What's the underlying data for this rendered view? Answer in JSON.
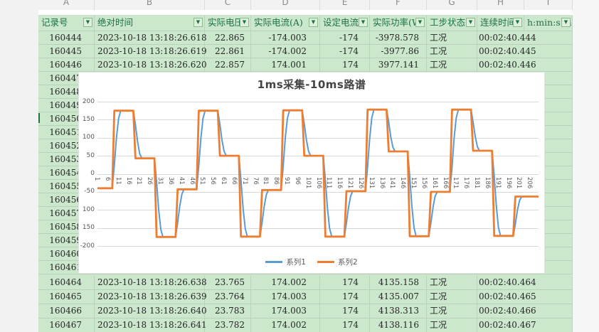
{
  "sheet": {
    "column_letters": [
      "A",
      "B",
      "C",
      "D",
      "E",
      "F",
      "G",
      "H",
      "I"
    ],
    "headers": [
      {
        "label": "记录号",
        "filter": true
      },
      {
        "label": "绝对时间",
        "filter": true
      },
      {
        "label": "实际电压",
        "filter": true
      },
      {
        "label": "实际电流(A)",
        "filter": true
      },
      {
        "label": "设定电流(",
        "filter": true
      },
      {
        "label": "实际功率(W",
        "filter": true
      },
      {
        "label": "工步状态",
        "filter": true
      },
      {
        "label": "连续时间",
        "filter": true
      },
      {
        "label": "h:min:s.m",
        "filter": true
      }
    ],
    "rows_top": [
      [
        "160444",
        "2023-10-18 13:18:26.618",
        "22.865",
        "-174.003",
        "-174",
        "-3978.578",
        "工况",
        "00:02:40.444"
      ],
      [
        "160445",
        "2023-10-18 13:18:26.619",
        "22.861",
        "-174.002",
        "-174",
        "-3977.86",
        "工况",
        "00:02:40.445"
      ],
      [
        "160446",
        "2023-10-18 13:18:26.620",
        "22.857",
        "174.001",
        "174",
        "3977.141",
        "工况",
        "00:02:40.446"
      ]
    ],
    "rows_partially_hidden_behind_chart": [
      "160447",
      "160448",
      "160449",
      "160450",
      "160451",
      "160452",
      "160453",
      "160454",
      "160455",
      "160456",
      "160457",
      "160458",
      "160459",
      "160460",
      "160461"
    ],
    "rows_bottom": [
      [
        "160464",
        "2023-10-18 13:18:26.638",
        "23.765",
        "174.002",
        "174",
        "4135.158",
        "工况",
        "00:02:40.464"
      ],
      [
        "160465",
        "2023-10-18 13:18:26.639",
        "23.764",
        "174.003",
        "174",
        "4135.007",
        "工况",
        "00:02:40.465"
      ],
      [
        "160466",
        "2023-10-18 13:18:26.640",
        "23.783",
        "174.003",
        "174",
        "4138.313",
        "工况",
        "00:02:40.466"
      ],
      [
        "160467",
        "2023-10-18 13:18:26.641",
        "23.782",
        "174.002",
        "174",
        "4138.116",
        "工况",
        "00:02:40.467"
      ]
    ]
  },
  "chart_data": {
    "type": "line",
    "title": "1ms采集-10ms路谱",
    "x_range": [
      1,
      210
    ],
    "y_range": [
      -200,
      200
    ],
    "x_tick_labels": [
      1,
      6,
      11,
      16,
      21,
      26,
      31,
      36,
      41,
      46,
      51,
      56,
      61,
      66,
      71,
      76,
      81,
      86,
      91,
      96,
      101,
      106,
      111,
      116,
      121,
      126,
      131,
      136,
      141,
      146,
      151,
      156,
      161,
      166,
      171,
      176,
      181,
      186,
      191,
      196,
      201,
      206
    ],
    "y_tick_labels_displayed": [
      "200",
      "150",
      "100",
      "50",
      "0",
      "-50",
      "100",
      "150",
      "-200"
    ],
    "grid": "horizontal",
    "legend_position": "bottom",
    "series": [
      {
        "name": "系列1",
        "color": "#5b9bd5",
        "width": 2,
        "style": "same steps as 系列2 but transitions ramp over ~3 samples"
      },
      {
        "name": "系列2",
        "color": "#ed7d31",
        "width": 2.8,
        "style": "ideal step profile"
      }
    ],
    "step_segments_x_from_to_value": [
      [
        1,
        8,
        -40
      ],
      [
        9,
        18,
        175
      ],
      [
        19,
        28,
        43
      ],
      [
        29,
        38,
        -175
      ],
      [
        39,
        48,
        -43
      ],
      [
        49,
        58,
        175
      ],
      [
        59,
        68,
        50
      ],
      [
        69,
        78,
        -174
      ],
      [
        79,
        88,
        -45
      ],
      [
        89,
        98,
        176
      ],
      [
        99,
        108,
        50
      ],
      [
        109,
        118,
        -174
      ],
      [
        119,
        128,
        -48
      ],
      [
        129,
        138,
        178
      ],
      [
        139,
        148,
        62
      ],
      [
        149,
        158,
        -173
      ],
      [
        159,
        168,
        -50
      ],
      [
        169,
        178,
        178
      ],
      [
        179,
        188,
        64
      ],
      [
        189,
        198,
        -172
      ],
      [
        199,
        210,
        -63
      ]
    ],
    "series1_ramp_fractions": [
      0.3,
      0.65,
      0.9
    ]
  },
  "colors": {
    "cell_green": "#cbe7cc",
    "grid_line": "#bcd2bc",
    "header_text": "#1e7145",
    "cell_text": "#262626",
    "window_bg": "#f6f6f6",
    "chart_grid": "#d9d9d9",
    "series1_blue": "#5b9bd5",
    "series2_orange": "#ed7d31",
    "selection_green": "#217346"
  }
}
